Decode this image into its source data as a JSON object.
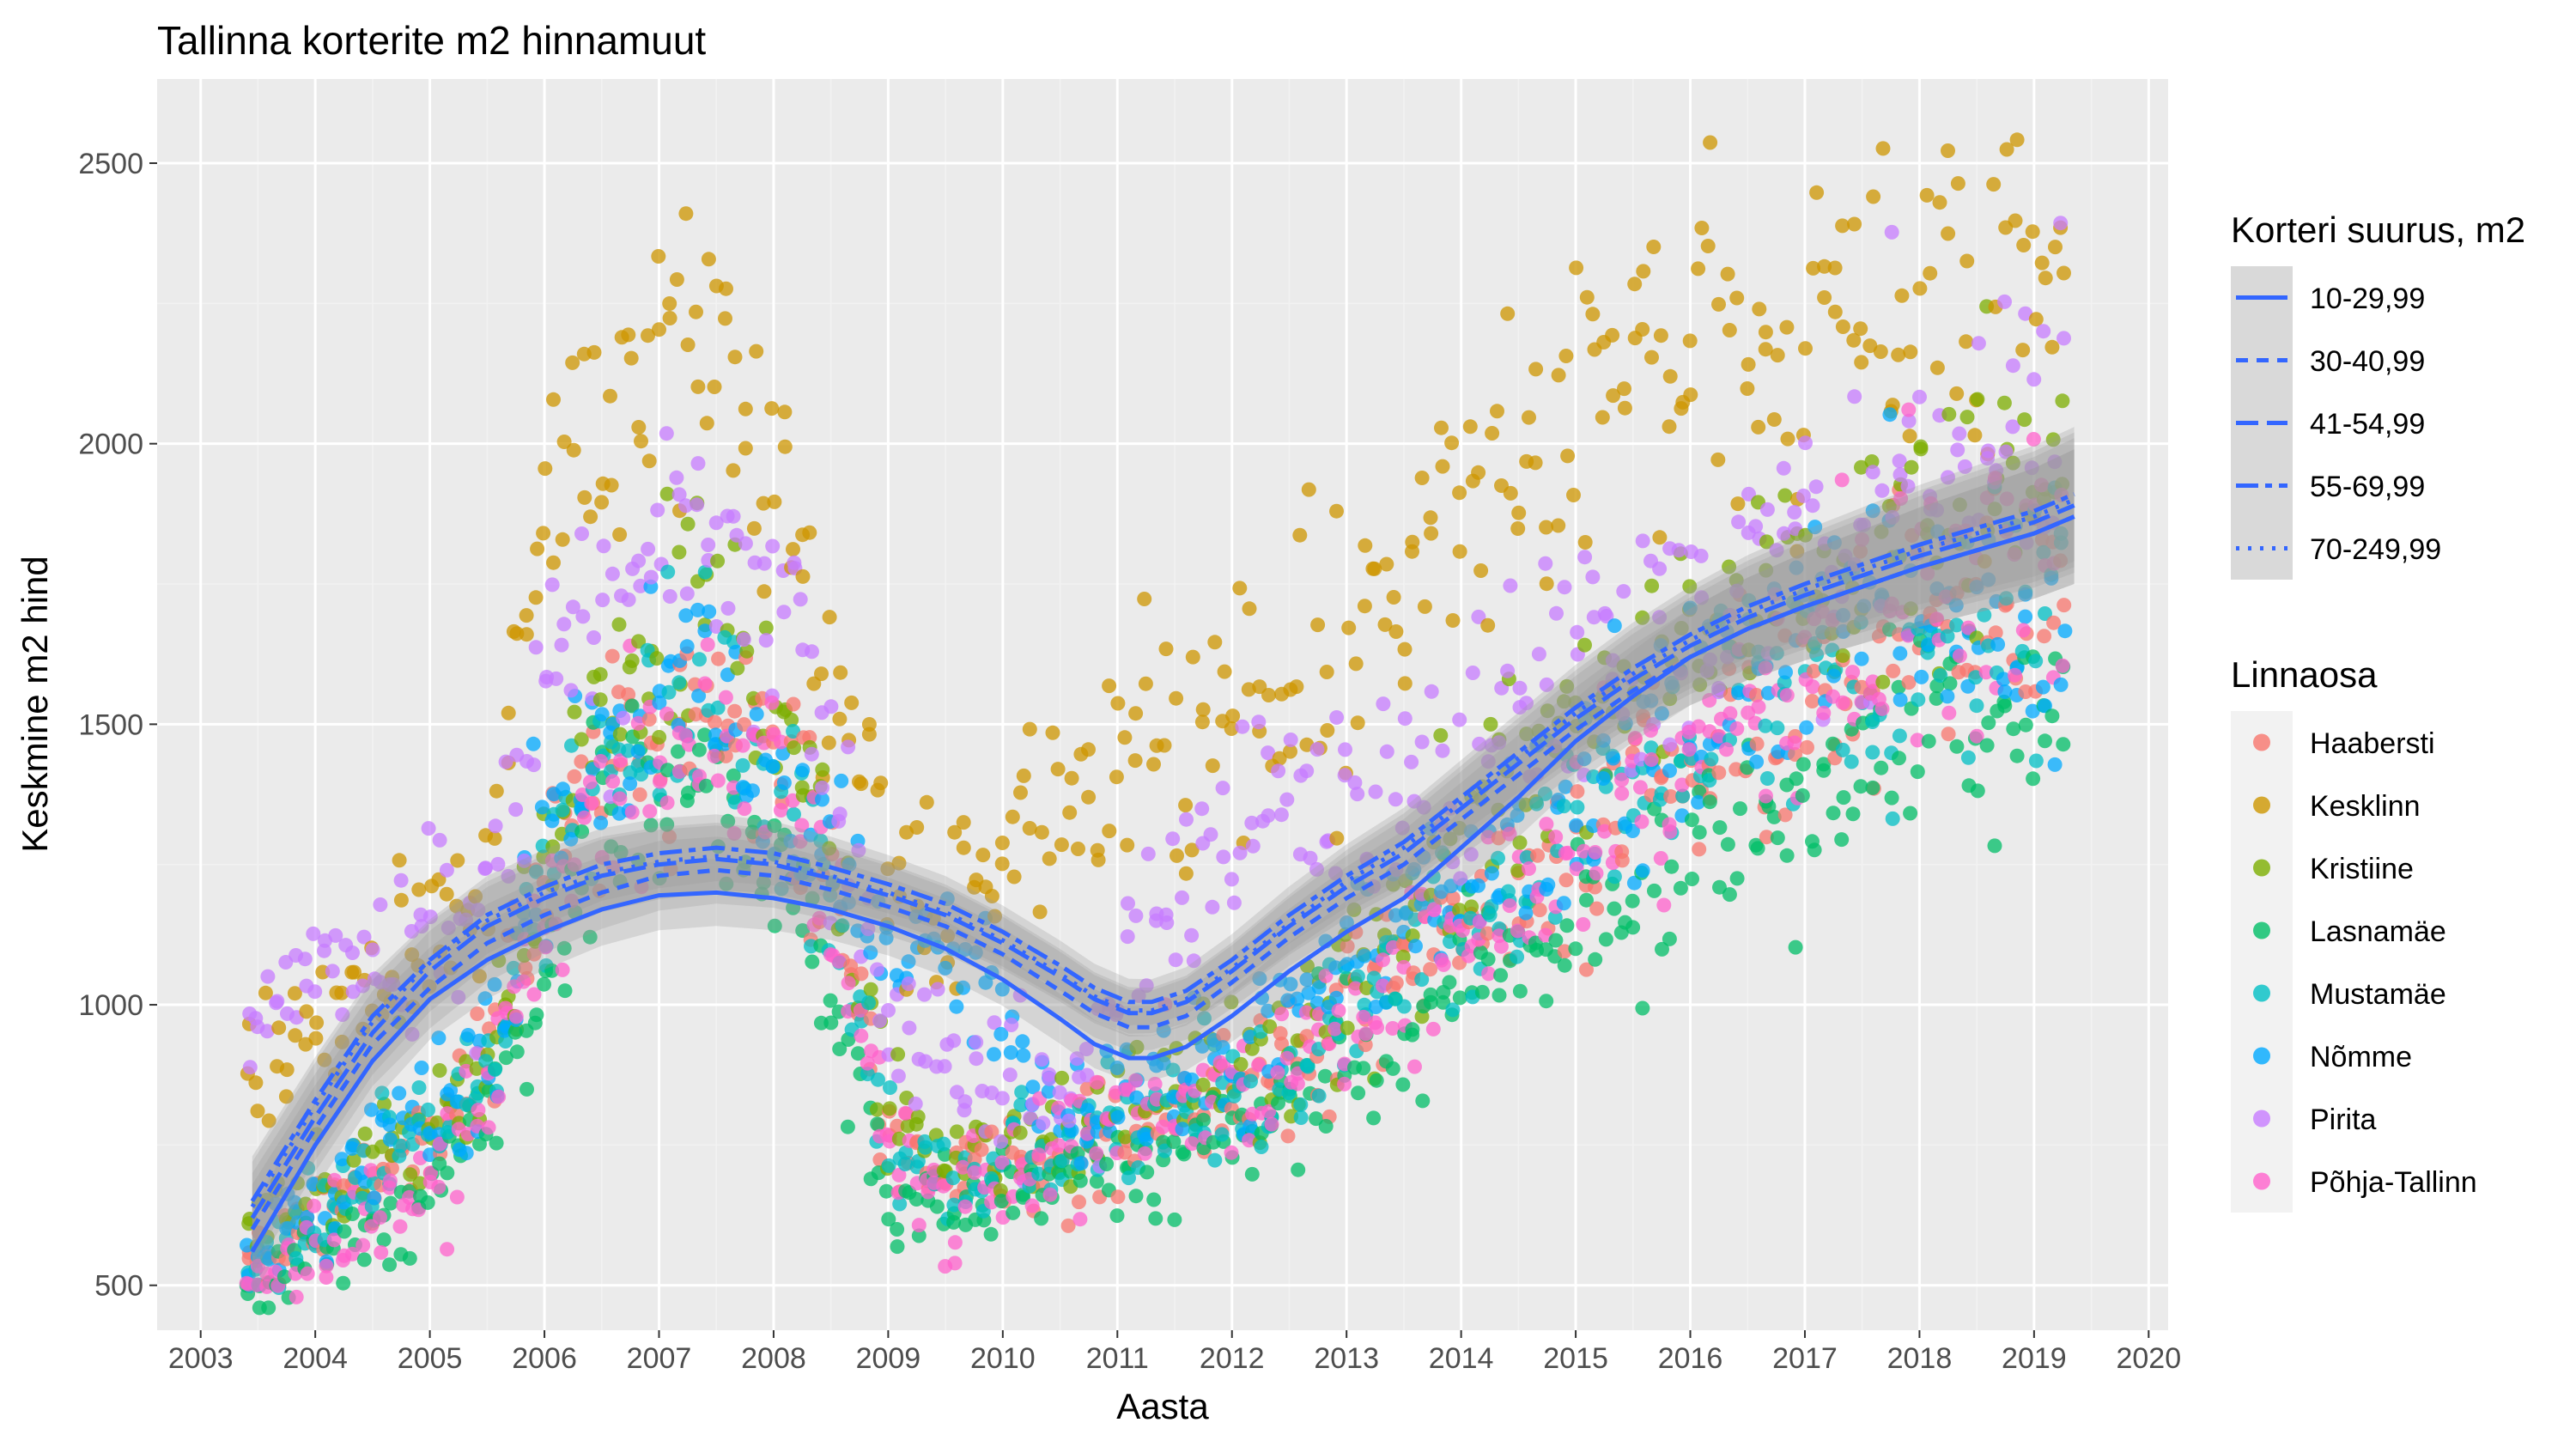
{
  "chart_data": {
    "type": "scatter",
    "title": "Tallinna korterite m2 hinnamuut",
    "xlabel": "Aasta",
    "ylabel": "Keskmine m2 hind",
    "xlim": [
      2002.62,
      2020.17
    ],
    "ylim": [
      420,
      2650
    ],
    "x_ticks": [
      2003,
      2004,
      2005,
      2006,
      2007,
      2008,
      2009,
      2010,
      2011,
      2012,
      2013,
      2014,
      2015,
      2016,
      2017,
      2018,
      2019,
      2020
    ],
    "y_ticks": [
      500,
      1000,
      1500,
      2000,
      2500
    ],
    "grid": true,
    "legend_placement": "right",
    "point_alpha": 0.75,
    "points_per_month_per_district": 2,
    "point_sampling_note": "points sampled per district per month from the trend values below",
    "month_range": [
      "2003-06",
      "2019-04"
    ],
    "color_legend": {
      "title": "Linnaosa",
      "entries": [
        {
          "name": "Haabersti",
          "color": "#F8766D"
        },
        {
          "name": "Kesklinn",
          "color": "#CD9600"
        },
        {
          "name": "Kristiine",
          "color": "#7CAE00"
        },
        {
          "name": "Lasnamäe",
          "color": "#00BE67"
        },
        {
          "name": "Mustamäe",
          "color": "#00BFC4"
        },
        {
          "name": "Nõmme",
          "color": "#00A9FF"
        },
        {
          "name": "Pirita",
          "color": "#C77CFF"
        },
        {
          "name": "Põhja-Tallinn",
          "color": "#FF61CC"
        }
      ]
    },
    "linetype_legend": {
      "title": "Korteri suurus, m2",
      "entries": [
        {
          "name": "10-29,99",
          "dash": "solid"
        },
        {
          "name": "30-40,99",
          "dash": "dashed"
        },
        {
          "name": "41-54,99",
          "dash": "longdash"
        },
        {
          "name": "55-69,99",
          "dash": "twodash"
        },
        {
          "name": "70-249,99",
          "dash": "dotted"
        }
      ]
    },
    "district_trends": {
      "x": [
        2003.5,
        2004.5,
        2005.5,
        2006.0,
        2006.5,
        2007.5,
        2008.3,
        2009.0,
        2009.5,
        2010.5,
        2011.5,
        2012.5,
        2013.5,
        2014.5,
        2015.5,
        2016.5,
        2017.5,
        2018.5,
        2019.3
      ],
      "series": [
        {
          "name": "Haabersti",
          "values": [
            560,
            700,
            900,
            1200,
            1430,
            1520,
            1380,
            760,
            680,
            700,
            800,
            900,
            1050,
            1200,
            1380,
            1480,
            1600,
            1700,
            1750
          ]
        },
        {
          "name": "Kesklinn",
          "values": [
            880,
            1050,
            1250,
            1850,
            2000,
            2200,
            1700,
            1250,
            1150,
            1400,
            1500,
            1600,
            1750,
            1950,
            2150,
            2150,
            2200,
            2250,
            2350
          ]
        },
        {
          "name": "Kristiine",
          "values": [
            600,
            720,
            900,
            1250,
            1550,
            1700,
            1400,
            820,
            720,
            780,
            850,
            950,
            1150,
            1400,
            1550,
            1700,
            1800,
            1900,
            2000
          ]
        },
        {
          "name": "Lasnamäe",
          "values": [
            490,
            600,
            780,
            1050,
            1330,
            1420,
            1150,
            680,
            650,
            680,
            740,
            820,
            950,
            1100,
            1200,
            1320,
            1400,
            1500,
            1560
          ]
        },
        {
          "name": "Mustamäe",
          "values": [
            540,
            680,
            880,
            1200,
            1450,
            1520,
            1300,
            760,
            680,
            730,
            800,
            880,
            1050,
            1250,
            1400,
            1550,
            1620,
            1680,
            1720
          ]
        },
        {
          "name": "Nõmme",
          "values": [
            560,
            720,
            900,
            1250,
            1450,
            1500,
            1350,
            1100,
            1100,
            800,
            850,
            1000,
            1150,
            1300,
            1450,
            1600,
            1700,
            1720,
            1600
          ]
        },
        {
          "name": "Pirita",
          "values": [
            1000,
            1100,
            1200,
            1600,
            1700,
            1850,
            1600,
            1000,
            900,
            850,
            1200,
            1400,
            1350,
            1550,
            1650,
            1750,
            1850,
            1950,
            2150
          ]
        },
        {
          "name": "Põhja-Tallinn",
          "values": [
            510,
            620,
            800,
            1150,
            1380,
            1480,
            1300,
            740,
            640,
            760,
            820,
            900,
            1050,
            1200,
            1350,
            1500,
            1650,
            1800,
            1850
          ]
        }
      ]
    },
    "smooth_lines": {
      "x": [
        2003.45,
        2004.0,
        2004.5,
        2005.0,
        2005.5,
        2006.0,
        2006.5,
        2007.0,
        2007.5,
        2008.0,
        2008.5,
        2009.0,
        2009.5,
        2010.0,
        2010.5,
        2010.8,
        2011.1,
        2011.3,
        2011.6,
        2012.0,
        2012.5,
        2013.0,
        2013.5,
        2014.0,
        2014.5,
        2015.0,
        2015.5,
        2016.0,
        2016.5,
        2017.0,
        2017.5,
        2018.0,
        2018.5,
        2019.0,
        2019.35
      ],
      "series": [
        {
          "name": "10-29,99",
          "values": [
            560,
            750,
            900,
            1010,
            1080,
            1130,
            1170,
            1195,
            1200,
            1190,
            1170,
            1140,
            1100,
            1045,
            975,
            930,
            905,
            905,
            925,
            980,
            1060,
            1130,
            1190,
            1280,
            1370,
            1470,
            1550,
            1620,
            1670,
            1710,
            1745,
            1780,
            1810,
            1840,
            1870
          ]
        },
        {
          "name": "30-40,99",
          "values": [
            600,
            780,
            930,
            1030,
            1110,
            1160,
            1200,
            1230,
            1240,
            1230,
            1205,
            1175,
            1140,
            1090,
            1025,
            985,
            960,
            960,
            980,
            1040,
            1120,
            1190,
            1250,
            1330,
            1410,
            1490,
            1560,
            1620,
            1670,
            1710,
            1745,
            1780,
            1810,
            1840,
            1870
          ]
        },
        {
          "name": "41-54,99",
          "values": [
            620,
            800,
            950,
            1060,
            1140,
            1190,
            1230,
            1250,
            1260,
            1250,
            1225,
            1195,
            1160,
            1110,
            1050,
            1010,
            985,
            985,
            1005,
            1060,
            1140,
            1210,
            1270,
            1350,
            1430,
            1510,
            1580,
            1640,
            1690,
            1730,
            1765,
            1800,
            1830,
            1860,
            1890
          ]
        },
        {
          "name": "55-69,99",
          "values": [
            650,
            830,
            980,
            1080,
            1160,
            1210,
            1250,
            1270,
            1280,
            1270,
            1245,
            1215,
            1180,
            1130,
            1070,
            1030,
            1005,
            1005,
            1025,
            1080,
            1160,
            1230,
            1290,
            1370,
            1450,
            1530,
            1600,
            1660,
            1710,
            1750,
            1785,
            1820,
            1850,
            1880,
            1910
          ]
        },
        {
          "name": "70-249,99",
          "values": [
            640,
            820,
            970,
            1075,
            1150,
            1200,
            1235,
            1255,
            1265,
            1255,
            1230,
            1200,
            1165,
            1115,
            1055,
            1015,
            990,
            990,
            1010,
            1065,
            1145,
            1220,
            1280,
            1360,
            1440,
            1520,
            1590,
            1650,
            1700,
            1740,
            1775,
            1810,
            1840,
            1870,
            1900
          ]
        }
      ],
      "ribbon": {
        "x_start": 2003.45,
        "x_end": 2019.35,
        "start_halfwidth": 80,
        "mid_halfwidth": 40,
        "end_halfwidth": 120
      }
    }
  },
  "style": {
    "panel_bg": "#EBEBEB",
    "grid_major": "#FFFFFF",
    "grid_minor": "#F2F2F2",
    "line_color": "#3366FF",
    "ribbon_color": "#999999",
    "text_dark": "#000000",
    "tick_text": "#4D4D4D",
    "legend_key_bg": "#D9D9D9"
  }
}
